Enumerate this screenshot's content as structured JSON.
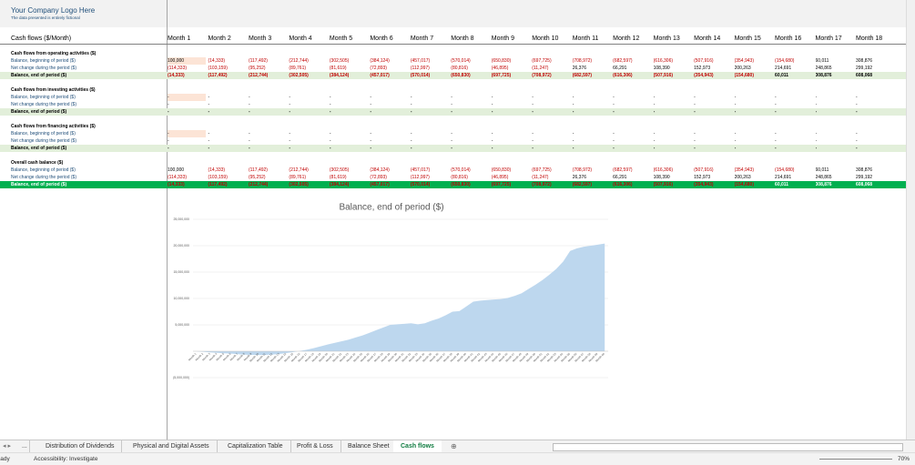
{
  "header": {
    "logo": "Your Company Logo Here",
    "note": "The data presented is entirely fictional"
  },
  "table": {
    "title": "Cash flows ($/Month)",
    "months": [
      "Month 1",
      "Month 2",
      "Month 3",
      "Month 4",
      "Month 5",
      "Month 6",
      "Month 7",
      "Month 8",
      "Month 9",
      "Month 10",
      "Month 11",
      "Month 12",
      "Month 13",
      "Month 14",
      "Month 15",
      "Month 16",
      "Month 17",
      "Month 18"
    ],
    "sections": [
      {
        "title": "Cash flows from operating activities ($)",
        "rows": [
          {
            "label": "Balance, beginning of period ($)",
            "values": [
              "100,000",
              "(14,333)",
              "(117,492)",
              "(212,744)",
              "(302,505)",
              "(384,124)",
              "(457,017)",
              "(570,014)",
              "(650,830)",
              "(697,725)",
              "(708,972)",
              "(682,597)",
              "(616,306)",
              "(507,916)",
              "(354,943)",
              "(154,680)",
              "60,011",
              "308,876"
            ]
          },
          {
            "label": "Net change during the period ($)",
            "values": [
              "(114,333)",
              "(103,159)",
              "(95,252)",
              "(89,761)",
              "(81,619)",
              "(72,893)",
              "(112,997)",
              "(80,816)",
              "(46,895)",
              "(11,247)",
              "26,376",
              "66,291",
              "108,390",
              "152,973",
              "200,263",
              "214,691",
              "248,865",
              "299,192"
            ]
          },
          {
            "label": "Balance, end of period ($)",
            "values": [
              "(14,333)",
              "(117,492)",
              "(212,744)",
              "(302,505)",
              "(384,124)",
              "(457,017)",
              "(570,014)",
              "(650,830)",
              "(697,725)",
              "(708,972)",
              "(682,597)",
              "(616,306)",
              "(507,916)",
              "(354,943)",
              "(154,680)",
              "60,011",
              "308,876",
              "608,068"
            ]
          }
        ]
      },
      {
        "title": "Cash flows from investing activities ($)",
        "rows": [
          {
            "label": "Balance, beginning of period ($)",
            "values": [
              "-",
              "-",
              "-",
              "-",
              "-",
              "-",
              "-",
              "-",
              "-",
              "-",
              "-",
              "-",
              "-",
              "-",
              "-",
              "-",
              "-",
              "-"
            ]
          },
          {
            "label": "Net change during the period ($)",
            "values": [
              "-",
              "-",
              "-",
              "-",
              "-",
              "-",
              "-",
              "-",
              "-",
              "-",
              "-",
              "-",
              "-",
              "-",
              "-",
              "-",
              "-",
              "-"
            ]
          },
          {
            "label": "Balance, end of period ($)",
            "values": [
              "-",
              "-",
              "-",
              "-",
              "-",
              "-",
              "-",
              "-",
              "-",
              "-",
              "-",
              "-",
              "-",
              "-",
              "-",
              "-",
              "-",
              "-"
            ]
          }
        ]
      },
      {
        "title": "Cash flows from financing activities ($)",
        "rows": [
          {
            "label": "Balance, beginning of period ($)",
            "values": [
              "-",
              "-",
              "-",
              "-",
              "-",
              "-",
              "-",
              "-",
              "-",
              "-",
              "-",
              "-",
              "-",
              "-",
              "-",
              "-",
              "-",
              "-"
            ]
          },
          {
            "label": "Net change during the period ($)",
            "values": [
              "-",
              "-",
              "-",
              "-",
              "-",
              "-",
              "-",
              "-",
              "-",
              "-",
              "-",
              "-",
              "-",
              "-",
              "-",
              "-",
              "-",
              "-"
            ]
          },
          {
            "label": "Balance, end of period ($)",
            "values": [
              "-",
              "-",
              "-",
              "-",
              "-",
              "-",
              "-",
              "-",
              "-",
              "-",
              "-",
              "-",
              "-",
              "-",
              "-",
              "-",
              "-",
              "-"
            ]
          }
        ]
      },
      {
        "title": "Overall cash balance ($)",
        "rows": [
          {
            "label": "Balance, beginning of period ($)",
            "values": [
              "100,000",
              "(14,333)",
              "(117,492)",
              "(212,744)",
              "(302,505)",
              "(384,124)",
              "(457,017)",
              "(570,014)",
              "(650,830)",
              "(697,725)",
              "(708,972)",
              "(682,597)",
              "(616,306)",
              "(507,916)",
              "(354,943)",
              "(154,680)",
              "60,011",
              "308,876"
            ]
          },
          {
            "label": "Net change during the period ($)",
            "values": [
              "(114,333)",
              "(103,159)",
              "(95,252)",
              "(89,761)",
              "(81,619)",
              "(72,893)",
              "(112,997)",
              "(80,816)",
              "(46,895)",
              "(11,247)",
              "26,376",
              "66,291",
              "108,390",
              "152,973",
              "200,263",
              "214,691",
              "248,865",
              "299,192"
            ]
          },
          {
            "label": "Balance, end of period ($)",
            "values": [
              "(14,333)",
              "(117,492)",
              "(212,744)",
              "(302,505)",
              "(384,124)",
              "(457,017)",
              "(570,014)",
              "(650,830)",
              "(697,725)",
              "(708,972)",
              "(682,597)",
              "(616,306)",
              "(507,916)",
              "(354,943)",
              "(154,680)",
              "60,011",
              "308,876",
              "608,068"
            ]
          }
        ]
      }
    ]
  },
  "chart_data": {
    "type": "area",
    "title": "Balance, end of period ($)",
    "color": "#bdd7ee",
    "categories": [
      "Month 1",
      "Month 2",
      "Month 3",
      "Month 4",
      "Month 5",
      "Month 6",
      "Month 7",
      "Month 8",
      "Month 9",
      "Month 10",
      "Month 11",
      "Month 12",
      "Month 13",
      "Month 14",
      "Month 15",
      "Month 16",
      "Month 17",
      "Month 18",
      "Month 19",
      "Month 20",
      "Month 21",
      "Month 22",
      "Month 23",
      "Month 24",
      "Month 25",
      "Month 26",
      "Month 27",
      "Month 28",
      "Month 29",
      "Month 30",
      "Month 31",
      "Month 32",
      "Month 33",
      "Month 34",
      "Month 35",
      "Month 36",
      "Month 37",
      "Month 38",
      "Month 39",
      "Month 40",
      "Month 41",
      "Month 42",
      "Month 43",
      "Month 44",
      "Month 45",
      "Month 46",
      "Month 47",
      "Month 48",
      "Month 49",
      "Month 50",
      "Month 51",
      "Month 52",
      "Month 53",
      "Month 54",
      "Month 55",
      "Month 56",
      "Month 57",
      "Month 58",
      "Month 59",
      "Month 60"
    ],
    "values": [
      -14333,
      -117492,
      -212744,
      -302505,
      -384124,
      -457017,
      -570014,
      -650830,
      -697725,
      -708972,
      -682597,
      -616306,
      -507916,
      -354943,
      -154680,
      60011,
      308876,
      608068,
      950000,
      1300000,
      1600000,
      1900000,
      2200000,
      2600000,
      3000000,
      3500000,
      4000000,
      4500000,
      5000000,
      5100000,
      5200000,
      5300000,
      5100000,
      5300000,
      5800000,
      6200000,
      6800000,
      7500000,
      7600000,
      8500000,
      9400000,
      9600000,
      9700000,
      9800000,
      9900000,
      10100000,
      10500000,
      11000000,
      11800000,
      12600000,
      13500000,
      14500000,
      15600000,
      17000000,
      19000000,
      19500000,
      19800000,
      20000000,
      20200000,
      20400000
    ],
    "ylim": [
      -5000000,
      25000000
    ],
    "yticks": [
      {
        "value": -5000000,
        "label": "(5,000,000)"
      },
      {
        "value": 5000000,
        "label": "5,000,000"
      },
      {
        "value": 10000000,
        "label": "10,000,000"
      },
      {
        "value": 15000000,
        "label": "15,000,000"
      },
      {
        "value": 20000000,
        "label": "20,000,000"
      },
      {
        "value": 25000000,
        "label": "25,000,000"
      }
    ],
    "grid": true
  },
  "tabs": [
    "...",
    "Distribution of Dividends",
    "Physical and Digital Assets",
    "Capitalization Table",
    "Profit & Loss",
    "Balance Sheet",
    "Cash flows"
  ],
  "status": {
    "ready": "Ready",
    "accessibility": "Accessibility: Investigate",
    "zoom": "70%"
  }
}
